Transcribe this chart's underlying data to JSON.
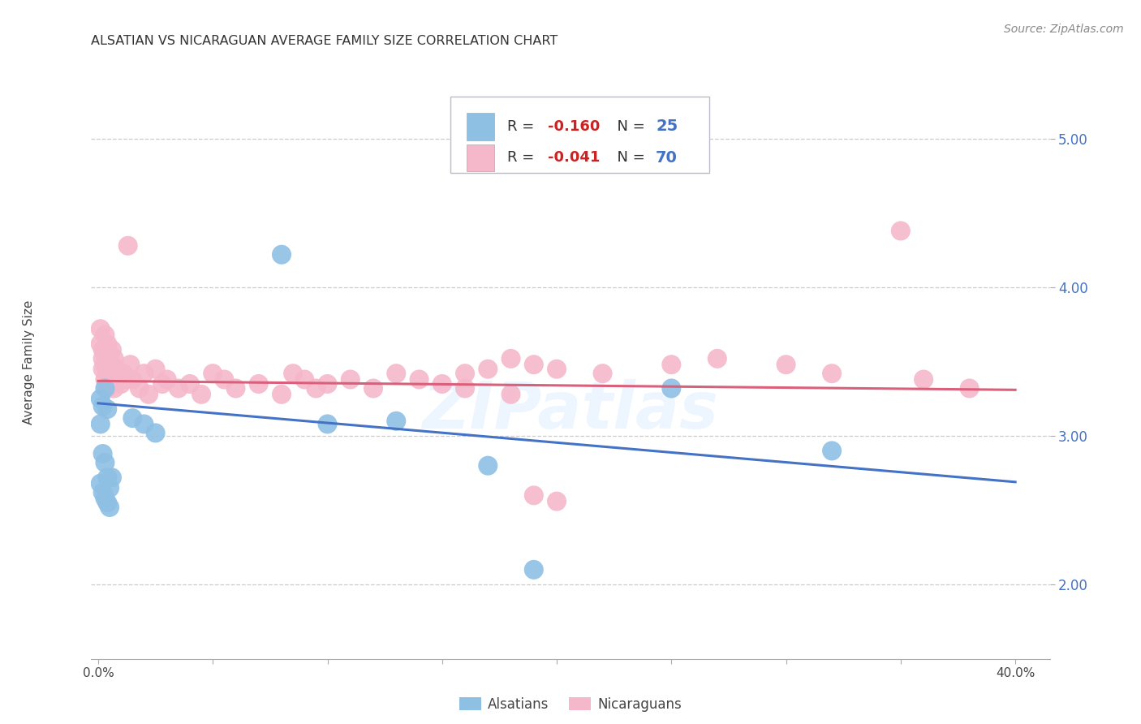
{
  "title": "ALSATIAN VS NICARAGUAN AVERAGE FAMILY SIZE CORRELATION CHART",
  "source": "Source: ZipAtlas.com",
  "ylabel": "Average Family Size",
  "watermark": "ZIPatlas",
  "legend": {
    "alsatian_R": "-0.160",
    "alsatian_N": "25",
    "nicaraguan_R": "-0.041",
    "nicaraguan_N": "70"
  },
  "ylim": [
    1.5,
    5.3
  ],
  "xlim": [
    -0.003,
    0.415
  ],
  "yticks": [
    2.0,
    3.0,
    4.0,
    5.0
  ],
  "xticks": [
    0.0,
    0.05,
    0.1,
    0.15,
    0.2,
    0.25,
    0.3,
    0.35,
    0.4
  ],
  "blue_color": "#8ec0e4",
  "pink_color": "#f5b8cb",
  "blue_line_color": "#4472c4",
  "pink_line_color": "#d9607a",
  "alsatian_points": [
    [
      0.001,
      3.25
    ],
    [
      0.002,
      3.2
    ],
    [
      0.003,
      3.32
    ],
    [
      0.004,
      3.18
    ],
    [
      0.001,
      3.08
    ],
    [
      0.002,
      2.88
    ],
    [
      0.003,
      2.82
    ],
    [
      0.004,
      2.72
    ],
    [
      0.005,
      2.65
    ],
    [
      0.002,
      2.62
    ],
    [
      0.003,
      2.58
    ],
    [
      0.004,
      2.55
    ],
    [
      0.005,
      2.52
    ],
    [
      0.006,
      2.72
    ],
    [
      0.001,
      2.68
    ],
    [
      0.015,
      3.12
    ],
    [
      0.02,
      3.08
    ],
    [
      0.025,
      3.02
    ],
    [
      0.08,
      4.22
    ],
    [
      0.1,
      3.08
    ],
    [
      0.13,
      3.1
    ],
    [
      0.17,
      2.8
    ],
    [
      0.25,
      3.32
    ],
    [
      0.32,
      2.9
    ],
    [
      0.19,
      2.1
    ]
  ],
  "nicaraguan_points": [
    [
      0.001,
      3.72
    ],
    [
      0.001,
      3.62
    ],
    [
      0.002,
      3.58
    ],
    [
      0.002,
      3.52
    ],
    [
      0.002,
      3.45
    ],
    [
      0.003,
      3.68
    ],
    [
      0.003,
      3.55
    ],
    [
      0.003,
      3.48
    ],
    [
      0.003,
      3.38
    ],
    [
      0.004,
      3.62
    ],
    [
      0.004,
      3.52
    ],
    [
      0.004,
      3.42
    ],
    [
      0.004,
      3.32
    ],
    [
      0.005,
      3.55
    ],
    [
      0.005,
      3.45
    ],
    [
      0.005,
      3.35
    ],
    [
      0.006,
      3.58
    ],
    [
      0.006,
      3.48
    ],
    [
      0.006,
      3.38
    ],
    [
      0.007,
      3.52
    ],
    [
      0.007,
      3.42
    ],
    [
      0.007,
      3.32
    ],
    [
      0.008,
      3.45
    ],
    [
      0.009,
      3.4
    ],
    [
      0.01,
      3.35
    ],
    [
      0.011,
      3.42
    ],
    [
      0.012,
      3.38
    ],
    [
      0.013,
      4.28
    ],
    [
      0.014,
      3.48
    ],
    [
      0.015,
      3.38
    ],
    [
      0.018,
      3.32
    ],
    [
      0.02,
      3.42
    ],
    [
      0.022,
      3.28
    ],
    [
      0.025,
      3.45
    ],
    [
      0.028,
      3.35
    ],
    [
      0.03,
      3.38
    ],
    [
      0.035,
      3.32
    ],
    [
      0.04,
      3.35
    ],
    [
      0.045,
      3.28
    ],
    [
      0.05,
      3.42
    ],
    [
      0.055,
      3.38
    ],
    [
      0.06,
      3.32
    ],
    [
      0.07,
      3.35
    ],
    [
      0.08,
      3.28
    ],
    [
      0.085,
      3.42
    ],
    [
      0.09,
      3.38
    ],
    [
      0.095,
      3.32
    ],
    [
      0.1,
      3.35
    ],
    [
      0.11,
      3.38
    ],
    [
      0.12,
      3.32
    ],
    [
      0.13,
      3.42
    ],
    [
      0.14,
      3.38
    ],
    [
      0.15,
      3.35
    ],
    [
      0.16,
      3.42
    ],
    [
      0.17,
      3.45
    ],
    [
      0.18,
      3.52
    ],
    [
      0.19,
      3.48
    ],
    [
      0.2,
      3.45
    ],
    [
      0.22,
      3.42
    ],
    [
      0.25,
      3.48
    ],
    [
      0.19,
      2.6
    ],
    [
      0.2,
      2.56
    ],
    [
      0.35,
      4.38
    ],
    [
      0.27,
      3.52
    ],
    [
      0.3,
      3.48
    ],
    [
      0.32,
      3.42
    ],
    [
      0.36,
      3.38
    ],
    [
      0.38,
      3.32
    ],
    [
      0.18,
      3.28
    ],
    [
      0.16,
      3.32
    ]
  ],
  "alsatian_trendline": [
    [
      0.0,
      3.22
    ],
    [
      0.4,
      2.69
    ]
  ],
  "nicaraguan_trendline": [
    [
      0.0,
      3.37
    ],
    [
      0.4,
      3.31
    ]
  ],
  "background_color": "#ffffff",
  "grid_color": "#cccccc",
  "title_fontsize": 11.5,
  "source_fontsize": 10,
  "ylabel_fontsize": 11,
  "ytick_fontsize": 12,
  "xtick_fontsize": 11,
  "legend_fontsize": 13
}
